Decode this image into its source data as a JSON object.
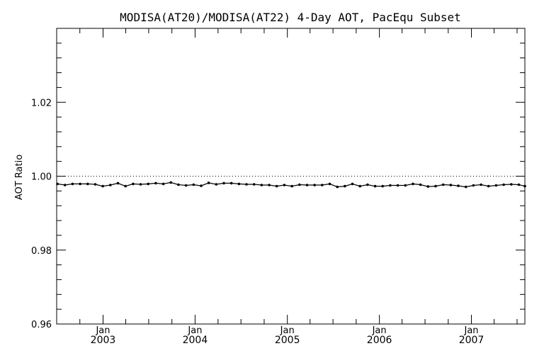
{
  "chart_data": {
    "type": "line",
    "title": "MODISA(AT20)/MODISA(AT22) 4-Day AOT, PacEqu Subset",
    "xlabel": "",
    "ylabel": "AOT Ratio",
    "xlim": [
      "2002-07-01",
      "2007-08-01"
    ],
    "ylim": [
      0.96,
      1.04
    ],
    "yticks": [
      0.96,
      0.98,
      1.0,
      1.02
    ],
    "ytick_labels": [
      "0.96",
      "0.98",
      "1.00",
      "1.02"
    ],
    "xticks": [
      {
        "date": "2003-01-01",
        "month": "Jan",
        "year": "2003"
      },
      {
        "date": "2004-01-01",
        "month": "Jan",
        "year": "2004"
      },
      {
        "date": "2005-01-01",
        "month": "Jan",
        "year": "2005"
      },
      {
        "date": "2006-01-01",
        "month": "Jan",
        "year": "2006"
      },
      {
        "date": "2007-01-01",
        "month": "Jan",
        "year": "2007"
      }
    ],
    "reference_line": 1.0,
    "grid": false,
    "series": [
      {
        "x": [
          "2002-07-04",
          "2002-08-03",
          "2002-09-02",
          "2002-10-02",
          "2002-11-01",
          "2002-12-01",
          "2002-12-31",
          "2003-01-30",
          "2003-03-01",
          "2003-03-31",
          "2003-04-30",
          "2003-05-30",
          "2003-06-29",
          "2003-07-29",
          "2003-08-28",
          "2003-09-27",
          "2003-10-27",
          "2003-11-26",
          "2003-12-26",
          "2004-01-25",
          "2004-02-24",
          "2004-03-25",
          "2004-04-24",
          "2004-05-24",
          "2004-06-23",
          "2004-07-23",
          "2004-08-22",
          "2004-09-21",
          "2004-10-21",
          "2004-11-20",
          "2004-12-20",
          "2005-01-19",
          "2005-02-18",
          "2005-03-20",
          "2005-04-19",
          "2005-05-19",
          "2005-06-18",
          "2005-07-18",
          "2005-08-17",
          "2005-09-16",
          "2005-10-16",
          "2005-11-15",
          "2005-12-15",
          "2006-01-14",
          "2006-02-13",
          "2006-03-15",
          "2006-04-14",
          "2006-05-14",
          "2006-06-13",
          "2006-07-13",
          "2006-08-12",
          "2006-09-11",
          "2006-10-11",
          "2006-11-10",
          "2006-12-10",
          "2007-01-09",
          "2007-02-08",
          "2007-03-10",
          "2007-04-09",
          "2007-05-09",
          "2007-06-08",
          "2007-07-08",
          "2007-08-01"
        ],
        "y": [
          0.9979,
          0.9976,
          0.9979,
          0.9979,
          0.9979,
          0.9978,
          0.9973,
          0.9976,
          0.9981,
          0.9973,
          0.9979,
          0.9978,
          0.9979,
          0.9981,
          0.9979,
          0.9983,
          0.9977,
          0.9975,
          0.9977,
          0.9974,
          0.9982,
          0.9978,
          0.9981,
          0.9981,
          0.9979,
          0.9978,
          0.9978,
          0.9976,
          0.9976,
          0.9973,
          0.9976,
          0.9973,
          0.9977,
          0.9976,
          0.9976,
          0.9976,
          0.9979,
          0.9971,
          0.9973,
          0.9979,
          0.9973,
          0.9977,
          0.9973,
          0.9973,
          0.9975,
          0.9975,
          0.9975,
          0.9979,
          0.9977,
          0.9972,
          0.9973,
          0.9977,
          0.9976,
          0.9974,
          0.9971,
          0.9975,
          0.9977,
          0.9973,
          0.9975,
          0.9977,
          0.9978,
          0.9977,
          0.9973
        ]
      }
    ]
  }
}
